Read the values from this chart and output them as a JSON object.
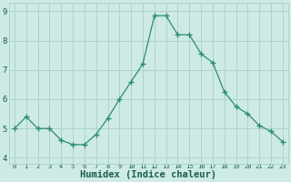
{
  "x": [
    0,
    1,
    2,
    3,
    4,
    5,
    6,
    7,
    8,
    9,
    10,
    11,
    12,
    13,
    14,
    15,
    16,
    17,
    18,
    19,
    20,
    21,
    22,
    23
  ],
  "y": [
    5.0,
    5.4,
    5.0,
    5.0,
    4.6,
    4.45,
    4.45,
    4.8,
    5.35,
    6.0,
    6.6,
    7.2,
    8.85,
    8.85,
    8.2,
    8.2,
    7.55,
    7.25,
    6.25,
    5.75,
    5.5,
    5.1,
    4.9,
    4.55
  ],
  "line_color": "#2d8b7a",
  "marker": "+",
  "marker_size": 4,
  "marker_color": "#2d8b7a",
  "bg_color": "#ceeae4",
  "grid_color": "#aad4cc",
  "xlabel": "Humidex (Indice chaleur)",
  "xlabel_fontsize": 7.5,
  "xlabel_color": "#1a5c52",
  "tick_color": "#1a5c52",
  "ylim": [
    3.8,
    9.3
  ],
  "xlim": [
    -0.5,
    23.5
  ],
  "yticks": [
    4,
    5,
    6,
    7,
    8,
    9
  ],
  "xtick_labels": [
    "0",
    "1",
    "2",
    "3",
    "4",
    "5",
    "6",
    "7",
    "8",
    "9",
    "10",
    "11",
    "12",
    "13",
    "14",
    "15",
    "16",
    "17",
    "18",
    "19",
    "20",
    "21",
    "22",
    "23"
  ]
}
